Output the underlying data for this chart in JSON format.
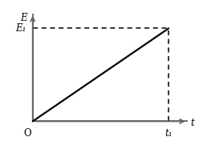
{
  "title": "",
  "x_label": "t",
  "y_label": "E",
  "origin_label": "O",
  "t1_label": "t₁",
  "e1_label": "E₁",
  "line_x": [
    0,
    1
  ],
  "line_y": [
    0,
    1
  ],
  "t1": 1,
  "e1": 1,
  "xlim": [
    -0.05,
    1.15
  ],
  "ylim": [
    -0.13,
    1.18
  ],
  "line_color": "#000000",
  "dashed_color": "#000000",
  "axis_color": "#666666",
  "background_color": "#ffffff",
  "line_width": 1.6,
  "dashed_lw": 1.1,
  "font_size": 8.5
}
